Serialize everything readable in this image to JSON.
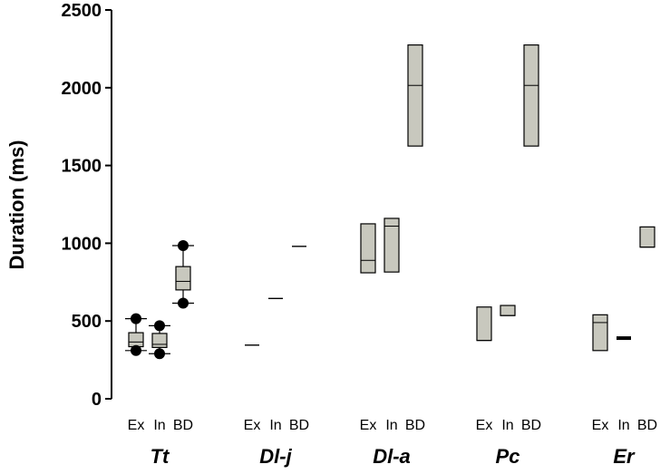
{
  "chart_data": {
    "type": "box",
    "ylabel": "Duration (ms)",
    "xlabel": "",
    "ylim": [
      0,
      2500
    ],
    "yticks": [
      0,
      500,
      1000,
      1500,
      2000,
      2500
    ],
    "grid": false,
    "box_fill": "#c8c8be",
    "sub_categories": [
      "Ex",
      "In",
      "BD"
    ],
    "groups": [
      {
        "name": "Tt",
        "boxes": [
          {
            "cat": "Ex",
            "q1": 335,
            "median": 365,
            "q3": 425,
            "whisker_low": 310,
            "whisker_high": 515,
            "outliers": [
              310,
              515
            ]
          },
          {
            "cat": "In",
            "q1": 330,
            "median": 350,
            "q3": 420,
            "whisker_low": 290,
            "whisker_high": 470,
            "outliers": [
              290,
              470
            ]
          },
          {
            "cat": "BD",
            "q1": 700,
            "median": 755,
            "q3": 850,
            "whisker_low": 615,
            "whisker_high": 985,
            "outliers": [
              615,
              985
            ]
          }
        ]
      },
      {
        "name": "Dl-j",
        "boxes": [
          {
            "cat": "Ex",
            "median": 345
          },
          {
            "cat": "In",
            "median": 645
          },
          {
            "cat": "BD",
            "median": 980
          }
        ]
      },
      {
        "name": "Dl-a",
        "boxes": [
          {
            "cat": "Ex",
            "q1": 810,
            "median": 890,
            "q3": 1125
          },
          {
            "cat": "In",
            "q1": 815,
            "median": 1110,
            "q3": 1160
          },
          {
            "cat": "BD",
            "q1": 1625,
            "median": 2015,
            "q3": 2275
          }
        ]
      },
      {
        "name": "Pc",
        "boxes": [
          {
            "cat": "Ex",
            "q1": 375,
            "median": 375,
            "q3": 590
          },
          {
            "cat": "In",
            "q1": 535,
            "median": 535,
            "q3": 600
          },
          {
            "cat": "BD",
            "q1": 1625,
            "median": 2015,
            "q3": 2275
          }
        ]
      },
      {
        "name": "Er",
        "boxes": [
          {
            "cat": "Ex",
            "q1": 310,
            "median": 490,
            "q3": 540
          },
          {
            "cat": "In",
            "median": 390
          },
          {
            "cat": "BD",
            "q1": 975,
            "median": 975,
            "q3": 1105
          }
        ]
      }
    ]
  }
}
